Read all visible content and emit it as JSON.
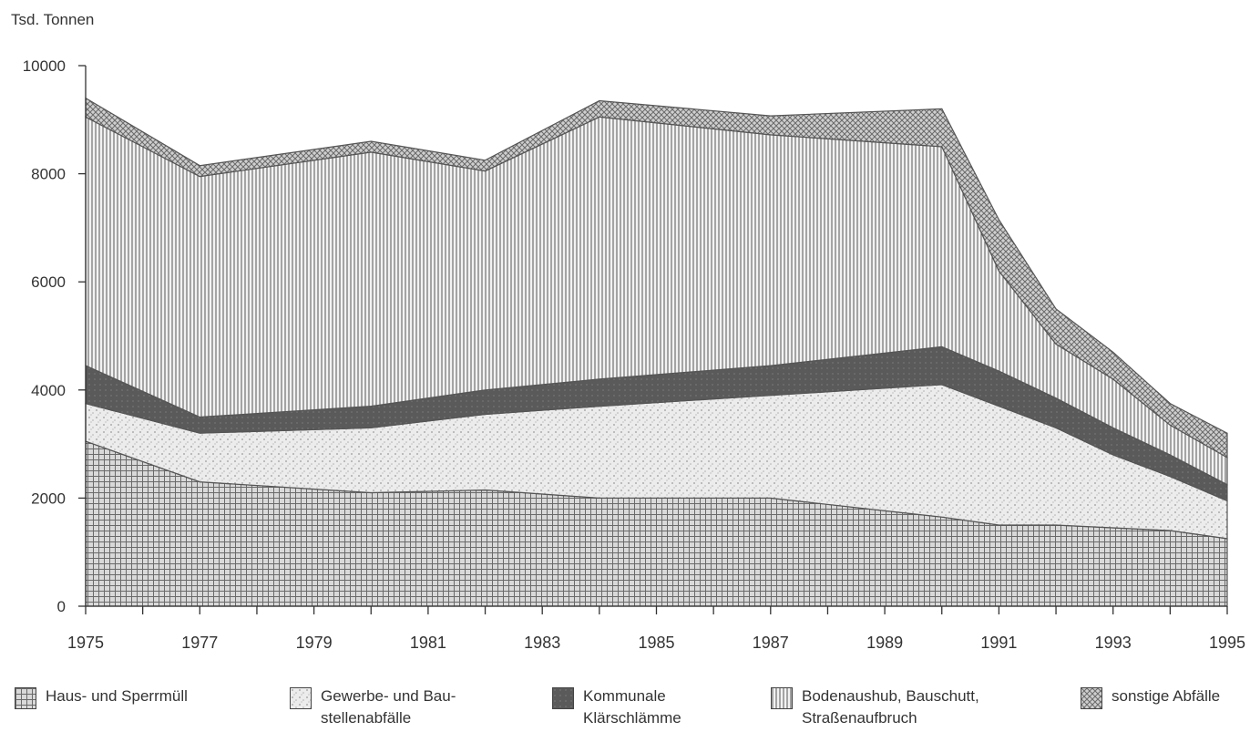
{
  "chart_data": {
    "type": "area",
    "stacked": true,
    "ylabel": "Tsd. Tonnen",
    "ylim": [
      0,
      10000
    ],
    "yticks": [
      0,
      2000,
      4000,
      6000,
      8000,
      10000
    ],
    "xlim": [
      1975,
      1995
    ],
    "xticks": [
      1975,
      1977,
      1979,
      1981,
      1983,
      1985,
      1987,
      1989,
      1991,
      1993,
      1995
    ],
    "x": [
      1975,
      1977,
      1980,
      1982,
      1984,
      1987,
      1990,
      1991,
      1992,
      1993,
      1994,
      1995
    ],
    "series": [
      {
        "name": "Haus- und Sperrmüll",
        "values": [
          3050,
          2300,
          2100,
          2150,
          2000,
          2000,
          1650,
          1500,
          1500,
          1450,
          1400,
          1250
        ]
      },
      {
        "name": "Gewerbe- und Baustellenabfälle",
        "values": [
          700,
          900,
          1200,
          1400,
          1700,
          1900,
          2450,
          2200,
          1800,
          1350,
          1000,
          700
        ]
      },
      {
        "name": "Kommunale Klärschlämme",
        "values": [
          700,
          300,
          400,
          450,
          500,
          550,
          700,
          650,
          550,
          500,
          400,
          300
        ]
      },
      {
        "name": "Bodenaushub, Bauschutt, Straßenaufbruch",
        "values": [
          4600,
          4450,
          4700,
          4050,
          4850,
          4270,
          3700,
          1850,
          1000,
          900,
          550,
          500
        ]
      },
      {
        "name": "sonstige Abfälle",
        "values": [
          350,
          200,
          200,
          200,
          300,
          350,
          700,
          950,
          650,
          500,
          400,
          450
        ]
      }
    ]
  },
  "legend": [
    {
      "key": "haus",
      "label": "Haus- und Sperrmüll"
    },
    {
      "key": "gewerbe",
      "label": "Gewerbe- und Bau-\nstellenabfälle"
    },
    {
      "key": "klaer",
      "label": "Kommunale\nKlärschlämme"
    },
    {
      "key": "boden",
      "label": "Bodenaushub, Bauschutt,\nStraßenaufbruch"
    },
    {
      "key": "sonst",
      "label": "sonstige Abfälle"
    }
  ]
}
